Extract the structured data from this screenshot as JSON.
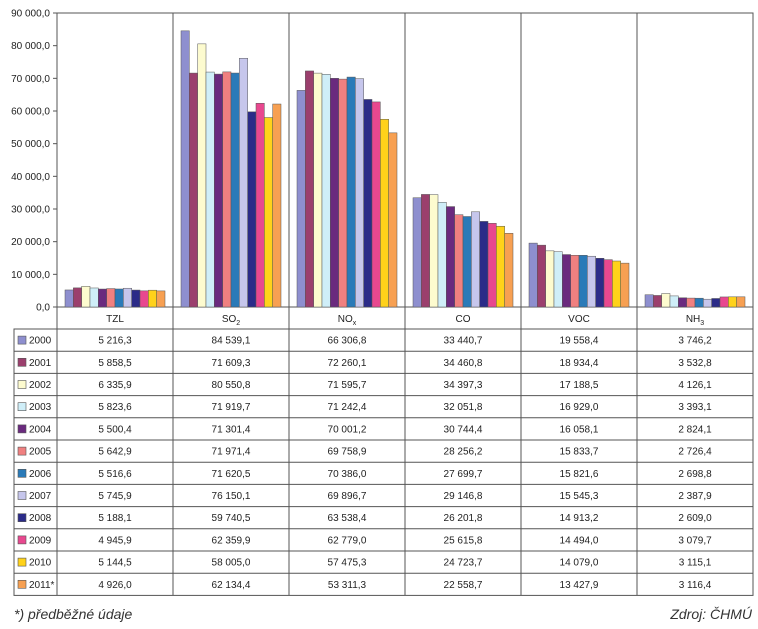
{
  "chart_data": {
    "type": "bar",
    "categories": [
      "TZL",
      "SO2",
      "NOx",
      "CO",
      "VOC",
      "NH3"
    ],
    "category_labels": [
      {
        "base": "TZL",
        "sub": ""
      },
      {
        "base": "SO",
        "sub": "2"
      },
      {
        "base": "NO",
        "sub": "x"
      },
      {
        "base": "CO",
        "sub": ""
      },
      {
        "base": "VOC",
        "sub": ""
      },
      {
        "base": "NH",
        "sub": "3"
      }
    ],
    "ylim": [
      0,
      90000
    ],
    "yticks": [
      "0,0",
      "10 000,0",
      "20 000,0",
      "30 000,0",
      "40 000,0",
      "50 000,0",
      "60 000,0",
      "70 000,0",
      "80 000,0",
      "90 000,0"
    ],
    "grid": "vertical separators",
    "legend": "data table below chart",
    "series": [
      {
        "name": "2000",
        "color": "#8e8fcf",
        "values": [
          5216.3,
          84539.1,
          66306.8,
          33440.7,
          19558.4,
          3746.2
        ],
        "labels": [
          "5 216,3",
          "84 539,1",
          "66 306,8",
          "33 440,7",
          "19 558,4",
          "3 746,2"
        ]
      },
      {
        "name": "2001",
        "color": "#9b3f6d",
        "values": [
          5858.5,
          71609.3,
          72260.1,
          34460.8,
          18934.4,
          3532.8
        ],
        "labels": [
          "5 858,5",
          "71 609,3",
          "72 260,1",
          "34 460,8",
          "18 934,4",
          "3 532,8"
        ]
      },
      {
        "name": "2002",
        "color": "#fdfbcf",
        "values": [
          6335.9,
          80550.8,
          71595.7,
          34397.3,
          17188.5,
          4126.1
        ],
        "labels": [
          "6 335,9",
          "80 550,8",
          "71 595,7",
          "34 397,3",
          "17 188,5",
          "4 126,1"
        ]
      },
      {
        "name": "2003",
        "color": "#cfeef8",
        "values": [
          5823.6,
          71919.7,
          71242.4,
          32051.8,
          16929.0,
          3393.1
        ],
        "labels": [
          "5 823,6",
          "71 919,7",
          "71 242,4",
          "32 051,8",
          "16 929,0",
          "3 393,1"
        ]
      },
      {
        "name": "2004",
        "color": "#6a2a7e",
        "values": [
          5500.4,
          71301.4,
          70001.2,
          30744.4,
          16058.1,
          2824.1
        ],
        "labels": [
          "5 500,4",
          "71 301,4",
          "70 001,2",
          "30 744,4",
          "16 058,1",
          "2 824,1"
        ]
      },
      {
        "name": "2005",
        "color": "#f08080",
        "values": [
          5642.9,
          71971.4,
          69758.9,
          28256.2,
          15833.7,
          2726.4
        ],
        "labels": [
          "5 642,9",
          "71 971,4",
          "69 758,9",
          "28 256,2",
          "15 833,7",
          "2 726,4"
        ]
      },
      {
        "name": "2006",
        "color": "#2a7ab8",
        "values": [
          5516.6,
          71620.5,
          70386.0,
          27699.7,
          15821.6,
          2698.8
        ],
        "labels": [
          "5 516,6",
          "71 620,5",
          "70 386,0",
          "27 699,7",
          "15 821,6",
          "2 698,8"
        ]
      },
      {
        "name": "2007",
        "color": "#c6c6ec",
        "values": [
          5745.9,
          76150.1,
          69896.7,
          29146.8,
          15545.3,
          2387.9
        ],
        "labels": [
          "5 745,9",
          "76 150,1",
          "69 896,7",
          "29 146,8",
          "15 545,3",
          "2 387,9"
        ]
      },
      {
        "name": "2008",
        "color": "#2b2b88",
        "values": [
          5188.1,
          59740.5,
          63538.4,
          26201.8,
          14913.2,
          2609.0
        ],
        "labels": [
          "5 188,1",
          "59 740,5",
          "63 538,4",
          "26 201,8",
          "14 913,2",
          "2 609,0"
        ]
      },
      {
        "name": "2009",
        "color": "#e8488f",
        "values": [
          4945.9,
          62359.9,
          62779.0,
          25615.8,
          14494.0,
          3079.7
        ],
        "labels": [
          "4 945,9",
          "62 359,9",
          "62 779,0",
          "25 615,8",
          "14 494,0",
          "3 079,7"
        ]
      },
      {
        "name": "2010",
        "color": "#ffd21a",
        "values": [
          5144.5,
          58005.0,
          57475.3,
          24723.7,
          14079.0,
          3115.1
        ],
        "labels": [
          "5 144,5",
          "58 005,0",
          "57 475,3",
          "24 723,7",
          "14 079,0",
          "3 115,1"
        ]
      },
      {
        "name": "2011*",
        "color": "#f7a052",
        "values": [
          4926.0,
          62134.4,
          53311.3,
          22558.7,
          13427.9,
          3116.4
        ],
        "labels": [
          "4 926,0",
          "62 134,4",
          "53 311,3",
          "22 558,7",
          "13 427,9",
          "3 116,4"
        ]
      }
    ]
  },
  "footnote": "*) předběžné údaje",
  "source": "Zdroj: ČHMÚ"
}
